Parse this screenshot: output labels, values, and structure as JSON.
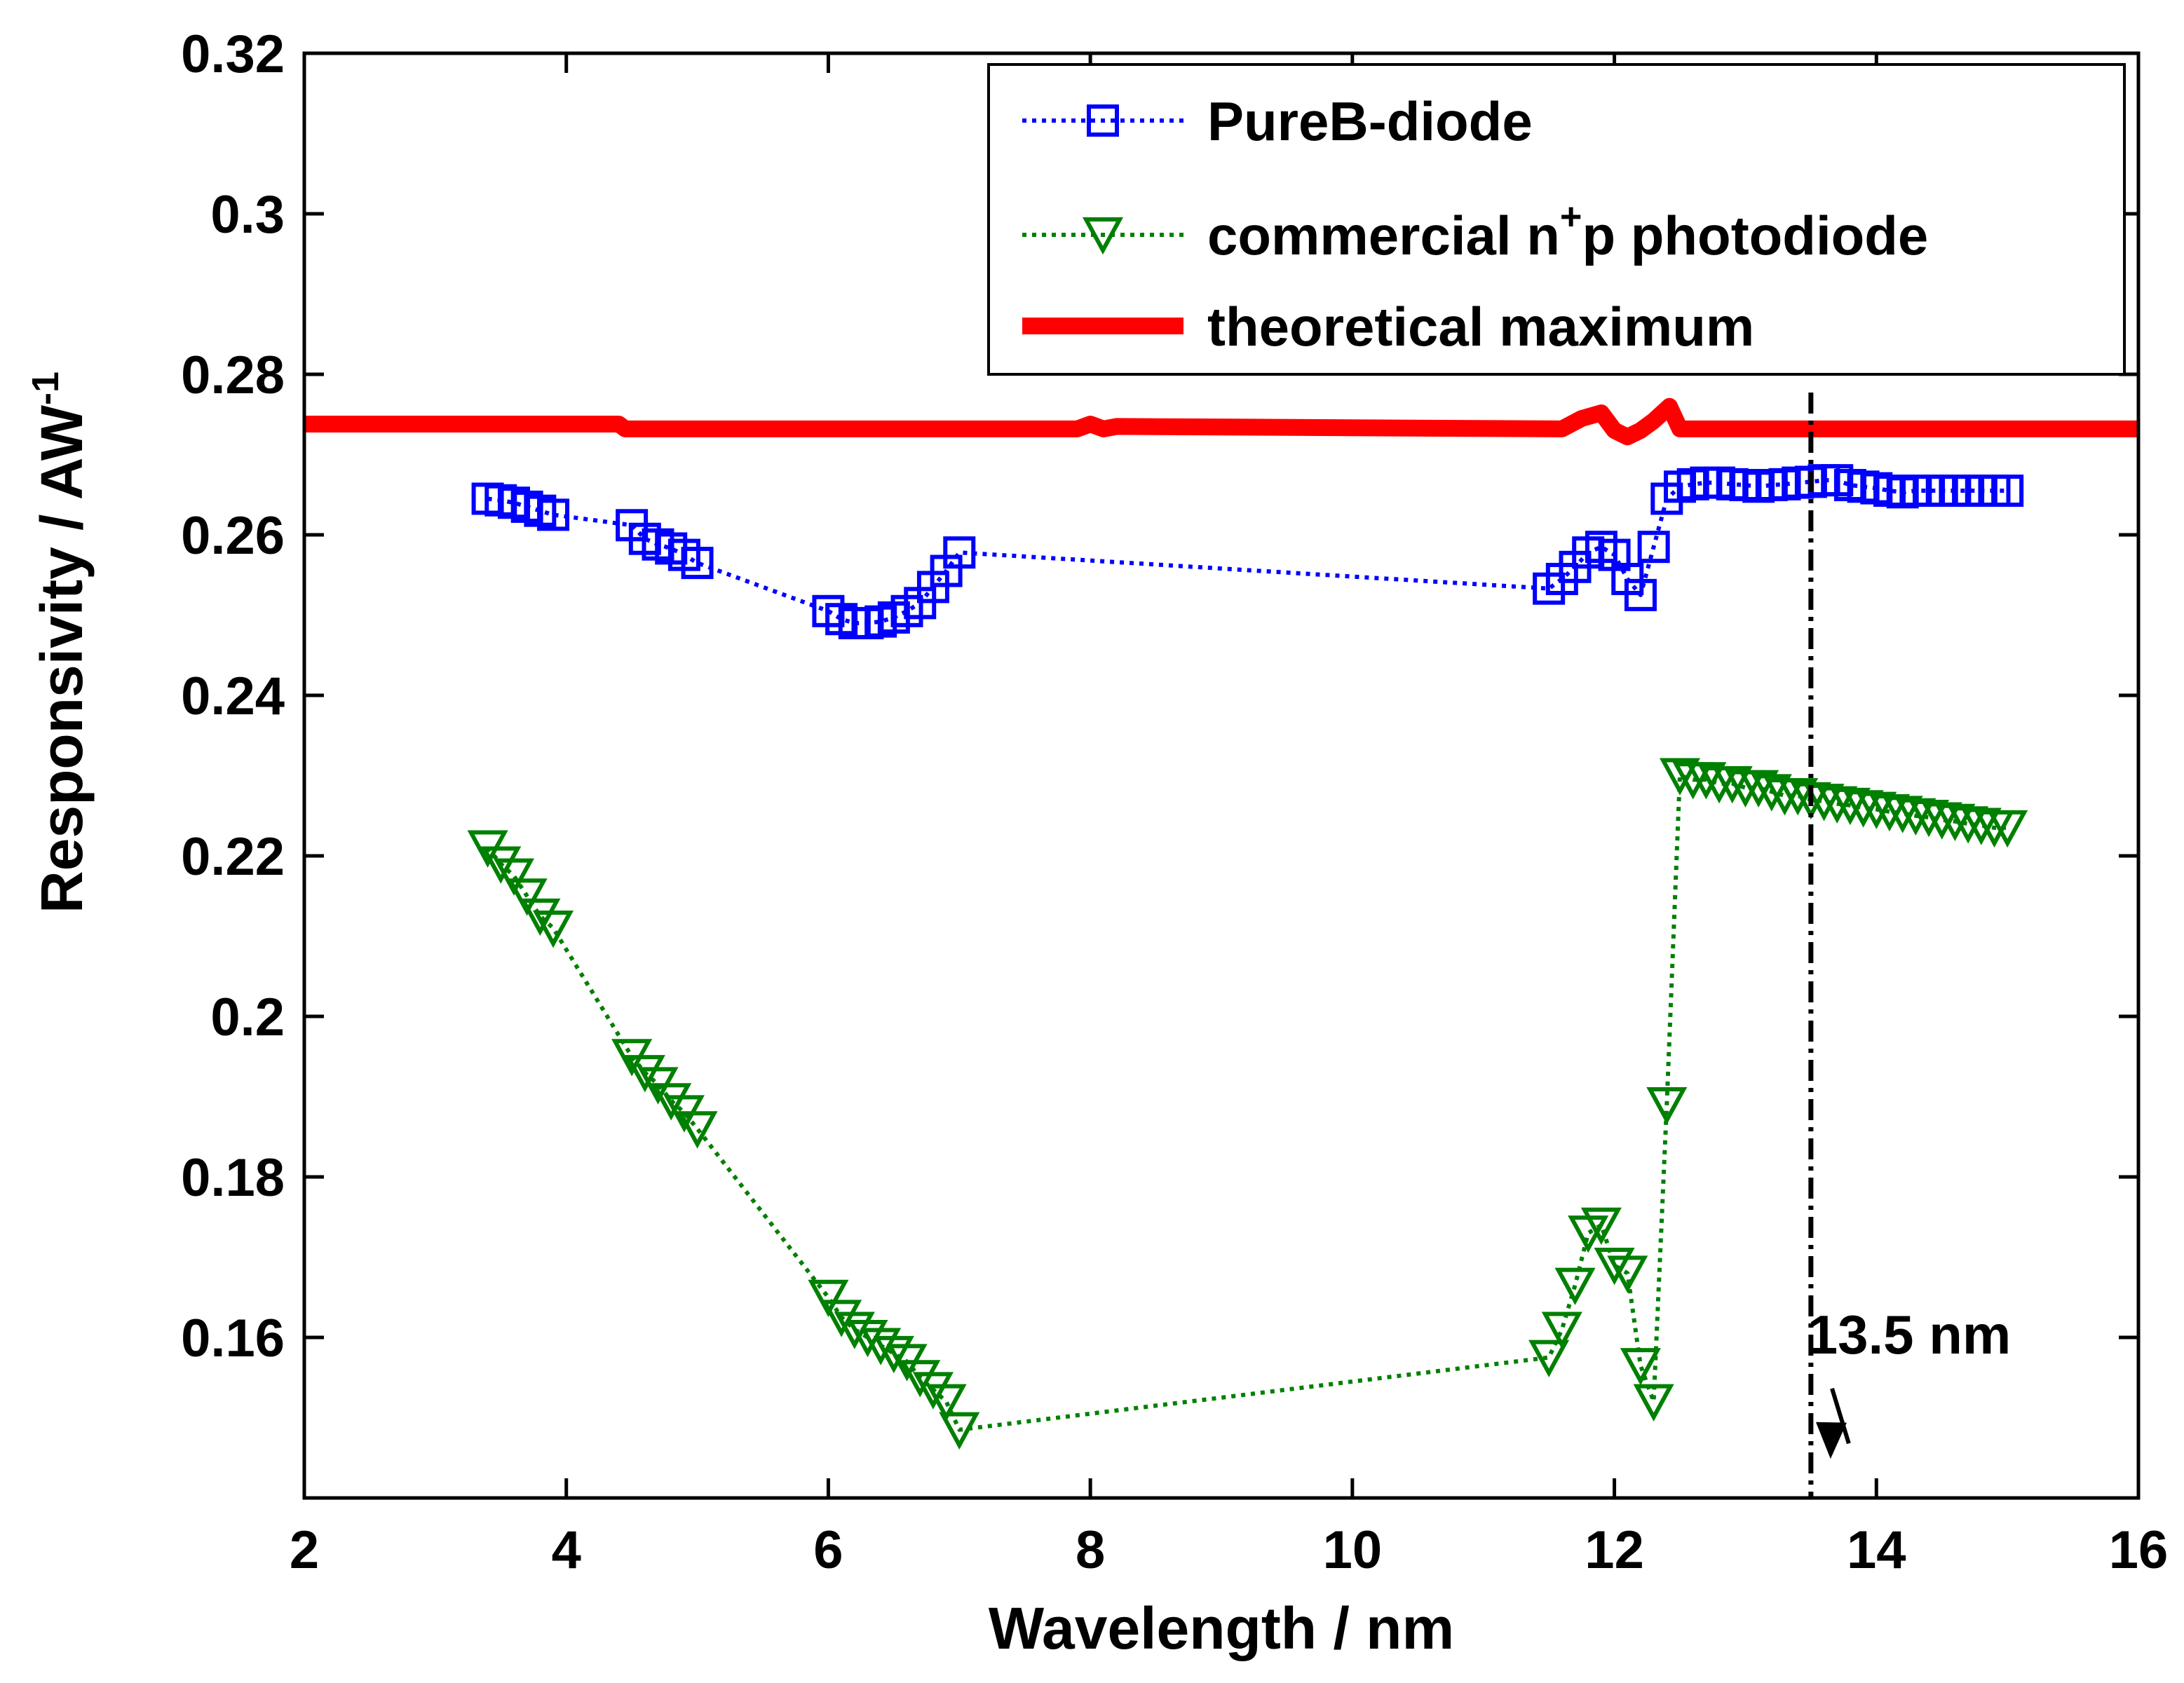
{
  "chart_data": {
    "type": "line",
    "title": "",
    "xlabel": "Wavelength / nm",
    "ylabel": "Responsivity / AW",
    "ylabel_sup": "-1",
    "xlim": [
      2,
      16
    ],
    "ylim": [
      0.14,
      0.32
    ],
    "xticks": [
      2,
      4,
      6,
      8,
      10,
      12,
      14,
      16
    ],
    "xtick_labels": [
      "2",
      "4",
      "6",
      "8",
      "10",
      "12",
      "14",
      "16"
    ],
    "yticks": [
      0.16,
      0.18,
      0.2,
      0.22,
      0.24,
      0.26,
      0.28,
      0.3,
      0.32
    ],
    "ytick_labels": [
      "0.16",
      "0.18",
      "0.2",
      "0.22",
      "0.24",
      "0.26",
      "0.28",
      "0.3",
      "0.32"
    ],
    "grid": false,
    "legend_position": "top-right",
    "series": [
      {
        "name": "PureB-diode",
        "color": "#0000ff",
        "marker": "square",
        "linestyle": "dotted",
        "x": [
          3.4,
          3.5,
          3.6,
          3.7,
          3.8,
          3.9,
          4.5,
          4.6,
          4.7,
          4.8,
          4.9,
          5.0,
          6.0,
          6.1,
          6.2,
          6.3,
          6.4,
          6.5,
          6.6,
          6.7,
          6.8,
          6.9,
          7.0,
          11.5,
          11.6,
          11.7,
          11.8,
          11.9,
          12.0,
          12.1,
          12.2,
          12.3,
          12.4,
          12.5,
          12.6,
          12.7,
          12.8,
          12.9,
          13.0,
          13.1,
          13.2,
          13.3,
          13.4,
          13.5,
          13.6,
          13.7,
          13.8,
          13.9,
          14.0,
          14.1,
          14.2,
          14.3,
          14.4,
          14.5,
          14.6,
          14.7,
          14.8,
          14.9,
          15.0
        ],
        "y": [
          0.2645,
          0.2643,
          0.264,
          0.2635,
          0.263,
          0.2625,
          0.2612,
          0.2595,
          0.2588,
          0.2583,
          0.2575,
          0.2565,
          0.2505,
          0.2495,
          0.249,
          0.249,
          0.2492,
          0.2497,
          0.2505,
          0.2515,
          0.2535,
          0.2555,
          0.2578,
          0.2533,
          0.2545,
          0.256,
          0.2578,
          0.2585,
          0.2575,
          0.2545,
          0.2525,
          0.2585,
          0.2645,
          0.266,
          0.2663,
          0.2665,
          0.2665,
          0.2663,
          0.2662,
          0.266,
          0.2662,
          0.2663,
          0.2665,
          0.2666,
          0.2668,
          0.2668,
          0.2662,
          0.266,
          0.2658,
          0.2655,
          0.2653,
          0.2655,
          0.2655,
          0.2655,
          0.2655,
          0.2655,
          0.2655,
          0.2655,
          0.2655
        ]
      },
      {
        "name": "commercial n",
        "name_sup": "+",
        "name_suffix": "p photodiode",
        "color": "#008000",
        "marker": "triangle-down",
        "linestyle": "dotted",
        "x": [
          3.4,
          3.5,
          3.6,
          3.7,
          3.8,
          3.9,
          4.5,
          4.6,
          4.7,
          4.8,
          4.9,
          5.0,
          6.0,
          6.1,
          6.2,
          6.3,
          6.4,
          6.5,
          6.6,
          6.7,
          6.8,
          6.9,
          7.0,
          11.5,
          11.6,
          11.7,
          11.8,
          11.9,
          12.0,
          12.1,
          12.2,
          12.3,
          12.4,
          12.5,
          12.6,
          12.7,
          12.8,
          12.9,
          13.0,
          13.1,
          13.2,
          13.3,
          13.4,
          13.5,
          13.6,
          13.7,
          13.8,
          13.9,
          14.0,
          14.1,
          14.2,
          14.3,
          14.4,
          14.5,
          14.6,
          14.7,
          14.8,
          14.9,
          15.0
        ],
        "y": [
          0.221,
          0.219,
          0.2175,
          0.215,
          0.2125,
          0.211,
          0.195,
          0.193,
          0.1915,
          0.1895,
          0.188,
          0.186,
          0.165,
          0.1625,
          0.161,
          0.16,
          0.159,
          0.158,
          0.157,
          0.155,
          0.1535,
          0.152,
          0.1485,
          0.1575,
          0.161,
          0.1665,
          0.173,
          0.174,
          0.169,
          0.168,
          0.1565,
          0.152,
          0.189,
          0.23,
          0.2295,
          0.2295,
          0.229,
          0.229,
          0.2285,
          0.2285,
          0.228,
          0.2275,
          0.2275,
          0.227,
          0.2268,
          0.2265,
          0.2263,
          0.226,
          0.2258,
          0.2255,
          0.2253,
          0.225,
          0.2248,
          0.2245,
          0.2243,
          0.224,
          0.2238,
          0.2235,
          0.2235
        ]
      },
      {
        "name": "theoretical maximum",
        "color": "#ff0000",
        "marker": "none",
        "linestyle": "solid",
        "x": [
          2.0,
          4.4,
          4.45,
          7.9,
          8.0,
          8.1,
          8.2,
          11.6,
          11.75,
          11.9,
          12.0,
          12.1,
          12.2,
          12.3,
          12.42,
          12.5,
          16.0
        ],
        "y": [
          0.2738,
          0.2738,
          0.2732,
          0.2732,
          0.2738,
          0.2732,
          0.2735,
          0.2732,
          0.2745,
          0.2752,
          0.273,
          0.2722,
          0.273,
          0.2742,
          0.276,
          0.2732,
          0.2732
        ]
      }
    ],
    "vline": {
      "x": 13.5,
      "color": "#000000",
      "linestyle": "dashdot"
    },
    "annotations": [
      {
        "text": "13.5 nm",
        "x": 14.25,
        "y": 0.158,
        "arrow_to": [
          13.5,
          0.144
        ]
      }
    ]
  }
}
